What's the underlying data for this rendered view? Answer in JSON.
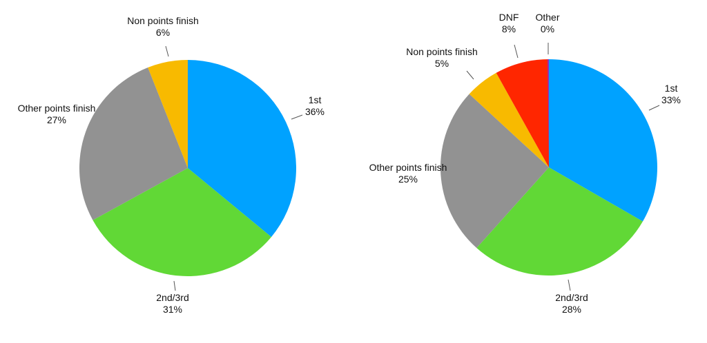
{
  "chart_data": [
    {
      "type": "pie",
      "start": "top",
      "direction": "clockwise",
      "slices": [
        {
          "label": "1st",
          "value": 36,
          "value_label": "36%",
          "color": "#00A2FF"
        },
        {
          "label": "2nd/3rd",
          "value": 31,
          "value_label": "31%",
          "color": "#61D836"
        },
        {
          "label": "Other points finish",
          "value": 27,
          "value_label": "27%",
          "color": "#929292"
        },
        {
          "label": "Non points finish",
          "value": 6,
          "value_label": "6%",
          "color": "#F8BA00"
        }
      ]
    },
    {
      "type": "pie",
      "start": "top",
      "direction": "clockwise",
      "slices": [
        {
          "label": "1st",
          "value": 33,
          "value_label": "33%",
          "color": "#00A2FF"
        },
        {
          "label": "2nd/3rd",
          "value": 28,
          "value_label": "28%",
          "color": "#61D836"
        },
        {
          "label": "Other points finish",
          "value": 25,
          "value_label": "25%",
          "color": "#929292"
        },
        {
          "label": "Non points finish",
          "value": 5,
          "value_label": "5%",
          "color": "#F8BA00"
        },
        {
          "label": "DNF",
          "value": 8,
          "value_label": "8%",
          "color": "#FF2600"
        },
        {
          "label": "Other",
          "value": 0,
          "value_label": "0%",
          "color": "#9929BD"
        }
      ]
    }
  ]
}
